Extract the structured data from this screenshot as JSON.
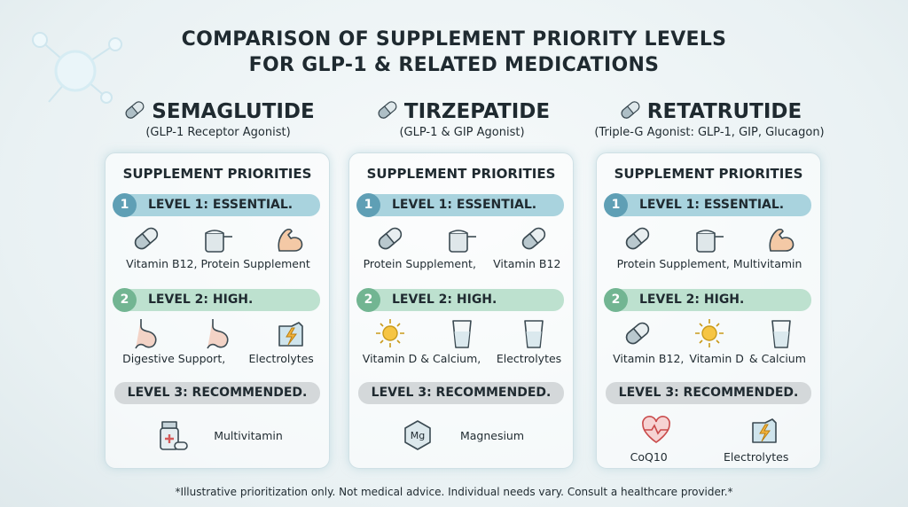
{
  "header": {
    "title_lines": [
      "COMPARISON OF SUPPLEMENT PRIORITY LEVELS",
      "FOR GLP-1 & RELATED MEDICATIONS"
    ]
  },
  "columns": [
    {
      "name": "SEMAGLUTIDE",
      "subtitle": "(GLP-1 Receptor Agonist)",
      "panel_title": "SUPPLEMENT PRIORITIES",
      "levels": [
        {
          "number": 1,
          "label": "LEVEL 1: ESSENTIAL.",
          "items": [
            "Vitamin B12, Protein Supplement"
          ]
        },
        {
          "number": 2,
          "label": "LEVEL 2: HIGH.",
          "items": [
            "Digestive Support,",
            "Electrolytes"
          ]
        },
        {
          "label": "LEVEL 3: RECOMMENDED.",
          "items": [
            "Multivitamin"
          ]
        }
      ]
    },
    {
      "name": "TIRZEPATIDE",
      "subtitle": "(GLP-1 & GIP Agonist)",
      "panel_title": "SUPPLEMENT PRIORITIES",
      "levels": [
        {
          "number": 1,
          "label": "LEVEL 1: ESSENTIAL.",
          "items": [
            "Protein Supplement,",
            "Vitamin B12"
          ]
        },
        {
          "number": 2,
          "label": "LEVEL 2: HIGH.",
          "items": [
            "Vitamin D & Calcium,",
            "Electrolytes"
          ]
        },
        {
          "label": "LEVEL 3: RECOMMENDED.",
          "items": [
            "Magnesium"
          ],
          "icon_text": "Mg"
        }
      ]
    },
    {
      "name": "RETATRUTIDE",
      "subtitle": "(Triple-G Agonist: GLP-1, GIP, Glucagon)",
      "panel_title": "SUPPLEMENT PRIORITIES",
      "levels": [
        {
          "number": 1,
          "label": "LEVEL 1: ESSENTIAL.",
          "items": [
            "Protein Supplement, Multivitamin"
          ]
        },
        {
          "number": 2,
          "label": "LEVEL 2: HIGH.",
          "items": [
            "Vitamin B12,",
            "Vitamin D",
            "& Calcium"
          ]
        },
        {
          "label": "LEVEL 3: RECOMMENDED.",
          "items": [
            "CoQ10",
            "Electrolytes"
          ]
        }
      ]
    }
  ],
  "footnote": "*Illustrative prioritization only. Not medical advice. Individual needs vary. Consult a healthcare provider.*"
}
